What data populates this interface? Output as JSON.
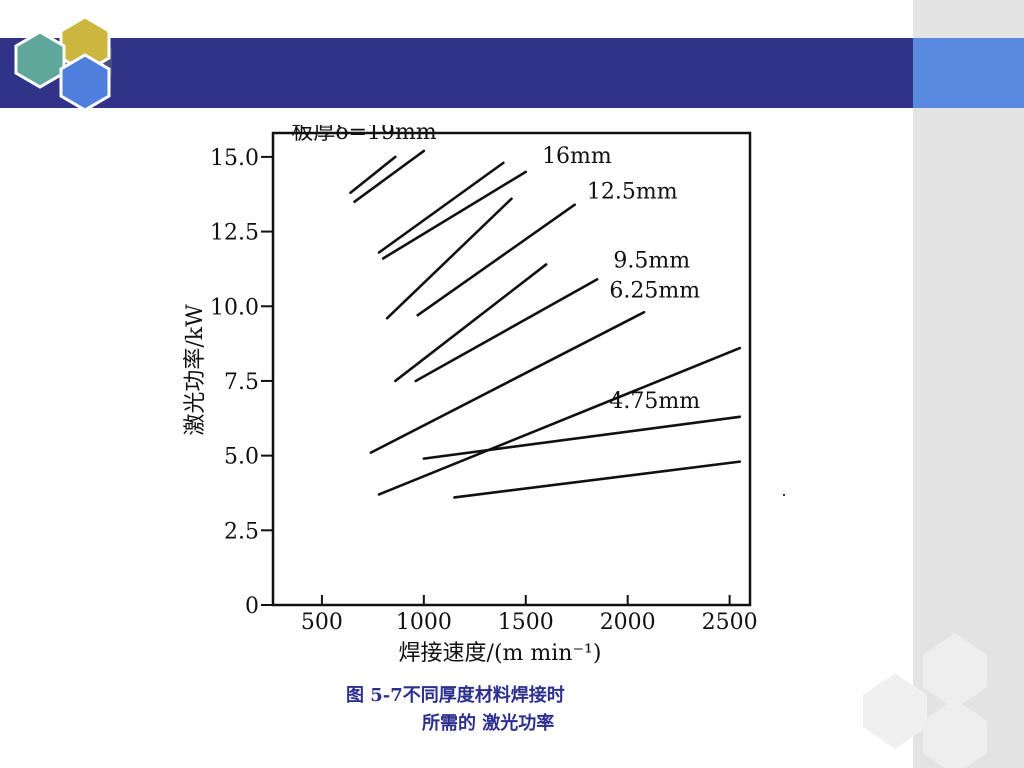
{
  "caption": {
    "line1": "图 5-7不同厚度材料焊接时",
    "line2": "所需的 激光功率"
  },
  "theme": {
    "header_color": "#303387",
    "accent_color": "#5a89e0",
    "side_panel_color": "#e3e3e3",
    "caption_color": "#2d2f8f"
  },
  "chart_data": {
    "type": "line",
    "xlabel": "焊接速度/(m min⁻¹)",
    "ylabel": "激光功率/kW",
    "xlim": [
      260,
      2600
    ],
    "ylim": [
      0,
      15.8
    ],
    "x_ticks": [
      {
        "value": 500,
        "label": "500"
      },
      {
        "value": 1000,
        "label": "1000"
      },
      {
        "value": 1500,
        "label": "1500"
      },
      {
        "value": 2000,
        "label": "2000"
      },
      {
        "value": 2500,
        "label": "2500"
      }
    ],
    "y_ticks": [
      {
        "value": 0,
        "label": "0"
      },
      {
        "value": 2.5,
        "label": "2.5"
      },
      {
        "value": 5.0,
        "label": "5.0"
      },
      {
        "value": 7.5,
        "label": "7.5"
      },
      {
        "value": 10.0,
        "label": "10.0"
      },
      {
        "value": 12.5,
        "label": "12.5"
      },
      {
        "value": 15.0,
        "label": "15.0"
      }
    ],
    "series": [
      {
        "name": "板厚δ=19mm",
        "x": [
          640,
          860
        ],
        "y": [
          13.8,
          15.0
        ]
      },
      {
        "name": "",
        "x": [
          660,
          1000
        ],
        "y": [
          13.5,
          15.2
        ]
      },
      {
        "name": "16mm",
        "x": [
          780,
          1390
        ],
        "y": [
          11.8,
          14.8
        ]
      },
      {
        "name": "",
        "x": [
          800,
          1500
        ],
        "y": [
          11.6,
          14.5
        ]
      },
      {
        "name": "12.5mm",
        "x": [
          820,
          1430
        ],
        "y": [
          9.6,
          13.6
        ]
      },
      {
        "name": "",
        "x": [
          970,
          1740
        ],
        "y": [
          9.7,
          13.4
        ]
      },
      {
        "name": "9.5mm",
        "x": [
          860,
          1600
        ],
        "y": [
          7.5,
          11.4
        ]
      },
      {
        "name": "",
        "x": [
          960,
          1850
        ],
        "y": [
          7.5,
          10.9
        ]
      },
      {
        "name": "6.25mm",
        "x": [
          740,
          2080
        ],
        "y": [
          5.1,
          9.8
        ]
      },
      {
        "name": "",
        "x": [
          780,
          2550
        ],
        "y": [
          3.7,
          8.6
        ]
      },
      {
        "name": "4.75mm",
        "x": [
          1000,
          2550
        ],
        "y": [
          4.9,
          6.3
        ]
      },
      {
        "name": "",
        "x": [
          1150,
          2550
        ],
        "y": [
          3.6,
          4.8
        ]
      }
    ],
    "annotations": [
      {
        "text": "板厚δ=19mm",
        "x": 350,
        "y": 15.6
      },
      {
        "text": "16mm",
        "x": 1580,
        "y": 14.8
      },
      {
        "text": "12.5mm",
        "x": 1800,
        "y": 13.6
      },
      {
        "text": "9.5mm",
        "x": 1930,
        "y": 11.3
      },
      {
        "text": "6.25mm",
        "x": 1910,
        "y": 10.3
      },
      {
        "text": "4.75mm",
        "x": 1910,
        "y": 6.6
      }
    ],
    "grid": false,
    "legend": "none"
  }
}
